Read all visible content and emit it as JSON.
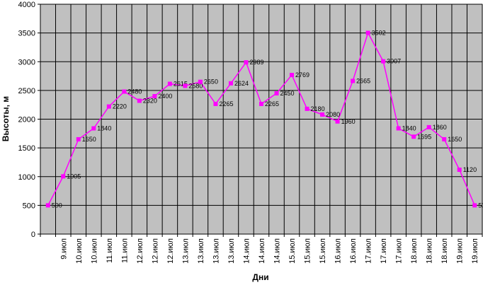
{
  "chart_data": {
    "type": "line",
    "x_label": "Дни",
    "y_label": "Высоты, м",
    "categories": [
      null,
      "9.июл",
      "10.июл",
      "10.июл",
      "11.июл",
      "11.июл",
      "12.июл",
      "12.июл",
      "12.июл",
      "13.июл",
      "13.июл",
      "13.июл",
      "13.июл",
      "14.июл",
      "14.июл",
      "14.июл",
      "15.июл",
      "15.июл",
      "15.июл",
      "16.июл",
      "16.июл",
      "17.июл",
      "17.июл",
      "17.июл",
      "18.июл",
      "18.июл",
      "18.июл",
      "19.июл",
      "19.июл"
    ],
    "series": [
      {
        "name": "Высоты",
        "color": "#ff00ff",
        "values": [
          500,
          1005,
          1650,
          1840,
          2220,
          2480,
          2320,
          2400,
          2615,
          2580,
          2650,
          2265,
          2624,
          2989,
          2265,
          2450,
          2769,
          2180,
          2080,
          1960,
          2665,
          3502,
          3007,
          1840,
          1695,
          1860,
          1650,
          1120,
          500
        ]
      }
    ],
    "ylim": [
      0,
      4000
    ],
    "yticks": [
      0,
      500,
      1000,
      1500,
      2000,
      2500,
      3000,
      3500,
      4000
    ],
    "grid": true,
    "plot_background": "#c0c0c0"
  }
}
